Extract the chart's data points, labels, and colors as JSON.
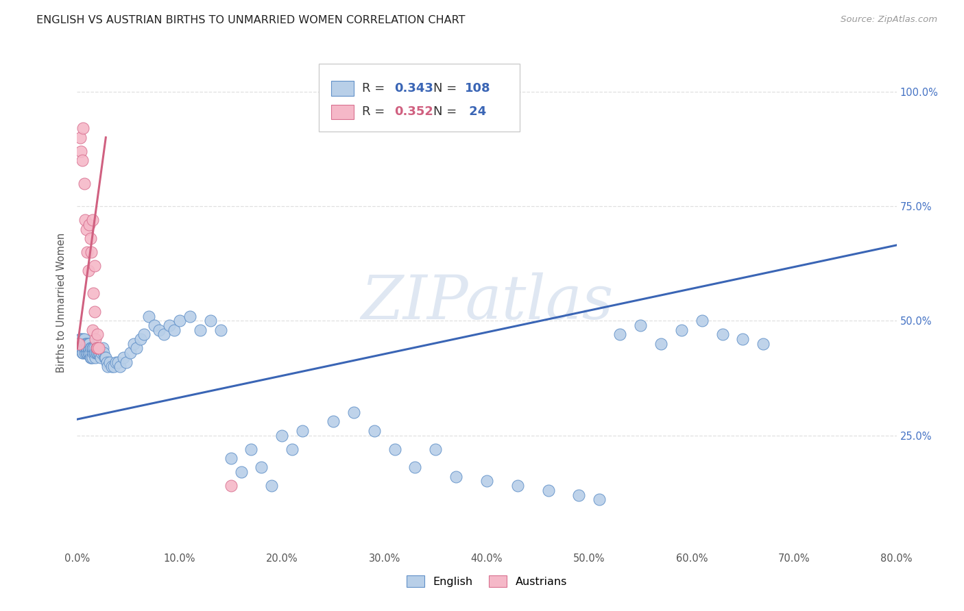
{
  "title": "ENGLISH VS AUSTRIAN BIRTHS TO UNMARRIED WOMEN CORRELATION CHART",
  "source": "Source: ZipAtlas.com",
  "ylabel": "Births to Unmarried Women",
  "watermark": "ZIPatlas",
  "english_R": 0.343,
  "english_N": 108,
  "austrian_R": 0.352,
  "austrian_N": 24,
  "english_color": "#b8cfe8",
  "austrian_color": "#f5b8c8",
  "english_edge_color": "#6090c8",
  "austrian_edge_color": "#d87090",
  "english_line_color": "#3a65b5",
  "austrian_line_color": "#d06080",
  "right_tick_color": "#4472c4",
  "xmin": 0.0,
  "xmax": 0.8,
  "ymin": 0.0,
  "ymax": 1.08,
  "yticks": [
    0.25,
    0.5,
    0.75,
    1.0
  ],
  "ytick_labels": [
    "25.0%",
    "50.0%",
    "75.0%",
    "100.0%"
  ],
  "english_trendline_x": [
    0.0,
    0.8
  ],
  "english_trendline_y": [
    0.285,
    0.665
  ],
  "austrian_trendline_x": [
    0.0,
    0.028
  ],
  "austrian_trendline_y": [
    0.44,
    0.9
  ],
  "grid_color": "#dddddd",
  "background_color": "#ffffff",
  "title_fontsize": 11.5,
  "tick_fontsize": 10.5,
  "english_x": [
    0.002,
    0.003,
    0.003,
    0.004,
    0.004,
    0.005,
    0.005,
    0.006,
    0.006,
    0.006,
    0.007,
    0.007,
    0.007,
    0.008,
    0.008,
    0.008,
    0.009,
    0.009,
    0.009,
    0.01,
    0.01,
    0.01,
    0.011,
    0.011,
    0.011,
    0.012,
    0.012,
    0.012,
    0.013,
    0.013,
    0.013,
    0.014,
    0.014,
    0.015,
    0.015,
    0.015,
    0.016,
    0.016,
    0.017,
    0.017,
    0.018,
    0.018,
    0.019,
    0.019,
    0.02,
    0.02,
    0.021,
    0.022,
    0.023,
    0.024,
    0.025,
    0.026,
    0.027,
    0.028,
    0.029,
    0.03,
    0.032,
    0.034,
    0.036,
    0.038,
    0.04,
    0.042,
    0.045,
    0.048,
    0.052,
    0.055,
    0.058,
    0.062,
    0.065,
    0.07,
    0.075,
    0.08,
    0.085,
    0.09,
    0.095,
    0.1,
    0.11,
    0.12,
    0.13,
    0.14,
    0.15,
    0.16,
    0.17,
    0.18,
    0.19,
    0.2,
    0.21,
    0.22,
    0.25,
    0.27,
    0.29,
    0.31,
    0.33,
    0.35,
    0.37,
    0.4,
    0.43,
    0.46,
    0.49,
    0.51,
    0.53,
    0.55,
    0.57,
    0.59,
    0.61,
    0.63,
    0.65,
    0.67
  ],
  "english_y": [
    0.44,
    0.46,
    0.45,
    0.44,
    0.46,
    0.43,
    0.45,
    0.44,
    0.46,
    0.43,
    0.45,
    0.44,
    0.46,
    0.43,
    0.45,
    0.44,
    0.43,
    0.45,
    0.44,
    0.43,
    0.45,
    0.44,
    0.43,
    0.44,
    0.45,
    0.43,
    0.44,
    0.45,
    0.42,
    0.44,
    0.43,
    0.44,
    0.42,
    0.43,
    0.44,
    0.42,
    0.43,
    0.44,
    0.43,
    0.44,
    0.42,
    0.43,
    0.43,
    0.44,
    0.43,
    0.44,
    0.43,
    0.43,
    0.42,
    0.43,
    0.44,
    0.43,
    0.42,
    0.42,
    0.41,
    0.4,
    0.41,
    0.4,
    0.4,
    0.41,
    0.41,
    0.4,
    0.42,
    0.41,
    0.43,
    0.45,
    0.44,
    0.46,
    0.47,
    0.51,
    0.49,
    0.48,
    0.47,
    0.49,
    0.48,
    0.5,
    0.51,
    0.48,
    0.5,
    0.48,
    0.2,
    0.17,
    0.22,
    0.18,
    0.14,
    0.25,
    0.22,
    0.26,
    0.28,
    0.3,
    0.26,
    0.22,
    0.18,
    0.22,
    0.16,
    0.15,
    0.14,
    0.13,
    0.12,
    0.11,
    0.47,
    0.49,
    0.45,
    0.48,
    0.5,
    0.47,
    0.46,
    0.45
  ],
  "austrian_x": [
    0.002,
    0.003,
    0.004,
    0.005,
    0.006,
    0.007,
    0.008,
    0.009,
    0.01,
    0.011,
    0.012,
    0.013,
    0.014,
    0.015,
    0.015,
    0.016,
    0.017,
    0.017,
    0.018,
    0.019,
    0.02,
    0.02,
    0.021,
    0.15
  ],
  "austrian_y": [
    0.45,
    0.9,
    0.87,
    0.85,
    0.92,
    0.8,
    0.72,
    0.7,
    0.65,
    0.61,
    0.71,
    0.68,
    0.65,
    0.72,
    0.48,
    0.56,
    0.62,
    0.52,
    0.46,
    0.44,
    0.44,
    0.47,
    0.44,
    0.14
  ]
}
